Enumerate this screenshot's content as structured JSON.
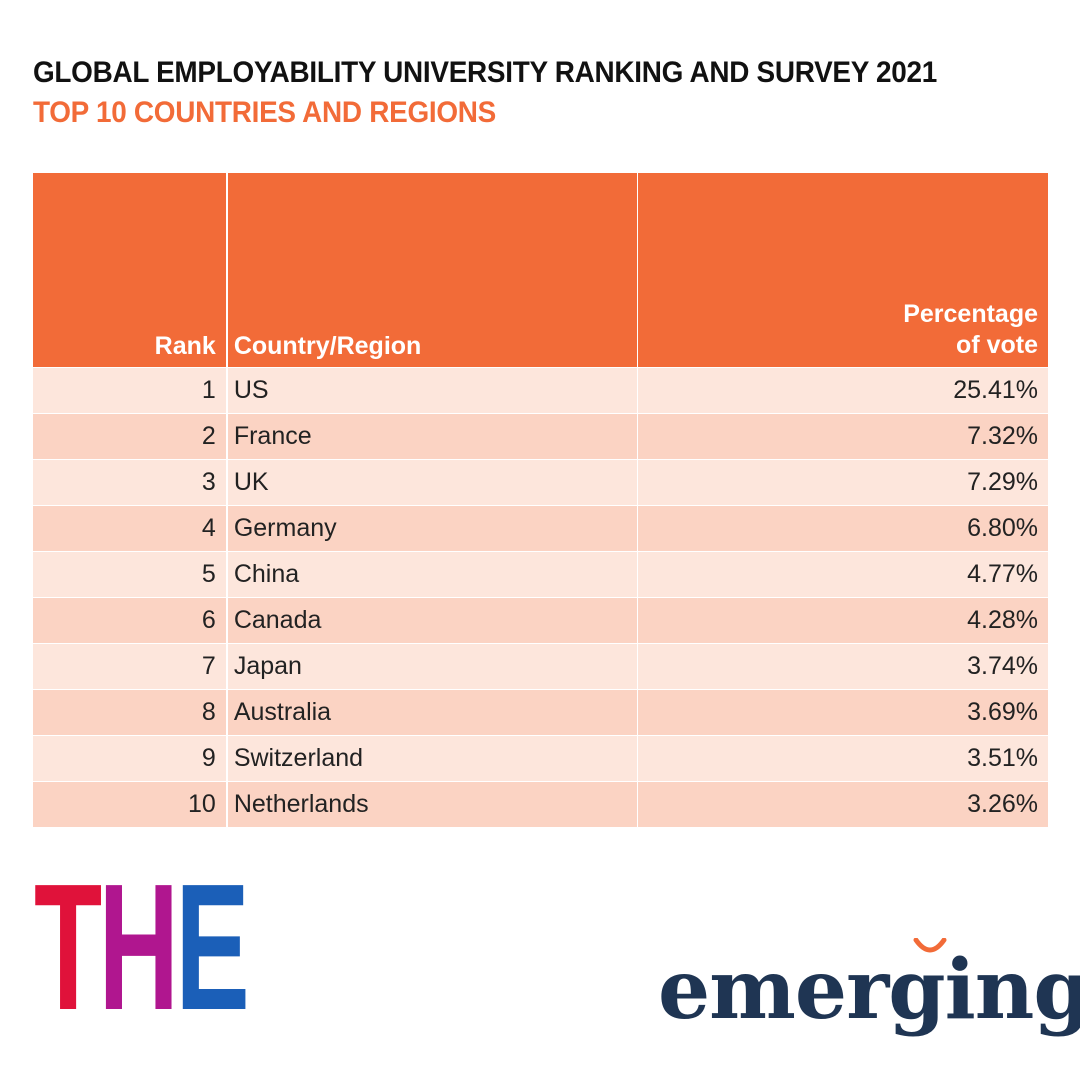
{
  "title": "GLOBAL EMPLOYABILITY UNIVERSITY RANKING AND SURVEY 2021",
  "subtitle": "TOP 10 COUNTRIES AND REGIONS",
  "table": {
    "headers": {
      "rank": "Rank",
      "country": "Country/Region",
      "percentage_line1": "Percentage",
      "percentage_line2": "of vote"
    },
    "rows": [
      {
        "rank": "1",
        "country": "US",
        "percentage": "25.41%"
      },
      {
        "rank": "2",
        "country": "France",
        "percentage": "7.32%"
      },
      {
        "rank": "3",
        "country": "UK",
        "percentage": "7.29%"
      },
      {
        "rank": "4",
        "country": "Germany",
        "percentage": "6.80%"
      },
      {
        "rank": "5",
        "country": "China",
        "percentage": "4.77%"
      },
      {
        "rank": "6",
        "country": "Canada",
        "percentage": "4.28%"
      },
      {
        "rank": "7",
        "country": "Japan",
        "percentage": "3.74%"
      },
      {
        "rank": "8",
        "country": "Australia",
        "percentage": "3.69%"
      },
      {
        "rank": "9",
        "country": "Switzerland",
        "percentage": "3.51%"
      },
      {
        "rank": "10",
        "country": "Netherlands",
        "percentage": "3.26%"
      }
    ]
  },
  "logos": {
    "the": {
      "t": "T",
      "h": "H",
      "e": "E"
    },
    "emerging": "emerging"
  },
  "colors": {
    "accent": "#f26b38",
    "row_light": "#fde6dc",
    "row_dark": "#fbd3c3",
    "the_red": "#e0123a",
    "the_magenta": "#b0168f",
    "the_blue": "#1b5fb8",
    "emerging_navy": "#1f3553"
  },
  "chart_data": {
    "type": "table",
    "title": "GLOBAL EMPLOYABILITY UNIVERSITY RANKING AND SURVEY 2021",
    "subtitle": "TOP 10 COUNTRIES AND REGIONS",
    "columns": [
      "Rank",
      "Country/Region",
      "Percentage of vote"
    ],
    "categories": [
      "US",
      "France",
      "UK",
      "Germany",
      "China",
      "Canada",
      "Japan",
      "Australia",
      "Switzerland",
      "Netherlands"
    ],
    "ranks": [
      1,
      2,
      3,
      4,
      5,
      6,
      7,
      8,
      9,
      10
    ],
    "values": [
      25.41,
      7.32,
      7.29,
      6.8,
      4.77,
      4.28,
      3.74,
      3.69,
      3.51,
      3.26
    ],
    "unit": "%"
  }
}
